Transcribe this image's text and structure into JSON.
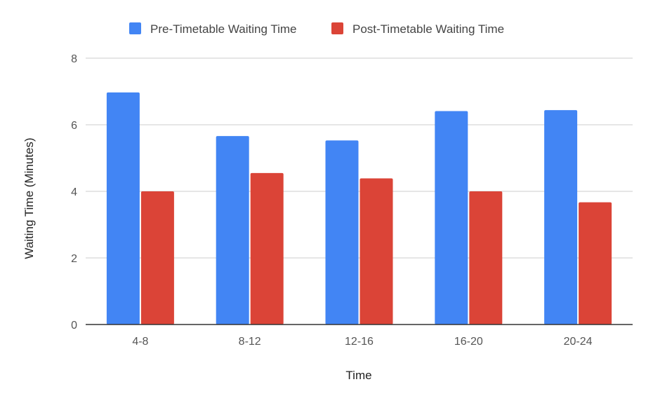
{
  "chart_data": {
    "type": "bar",
    "title": "",
    "xlabel": "Time",
    "ylabel": "Waiting Time (Minutes)",
    "ylim": [
      0,
      8
    ],
    "yticks": [
      0,
      2,
      4,
      6,
      8
    ],
    "grid": true,
    "legend_position": "top",
    "categories": [
      "4-8",
      "8-12",
      "12-16",
      "16-20",
      "20-24"
    ],
    "series": [
      {
        "name": "Pre-Timetable Waiting Time",
        "color": "#4285f4",
        "values": [
          6.97,
          5.66,
          5.53,
          6.41,
          6.44
        ]
      },
      {
        "name": "Post-Timetable Waiting Time",
        "color": "#db4437",
        "values": [
          4.0,
          4.55,
          4.39,
          4.0,
          3.67
        ]
      }
    ]
  }
}
